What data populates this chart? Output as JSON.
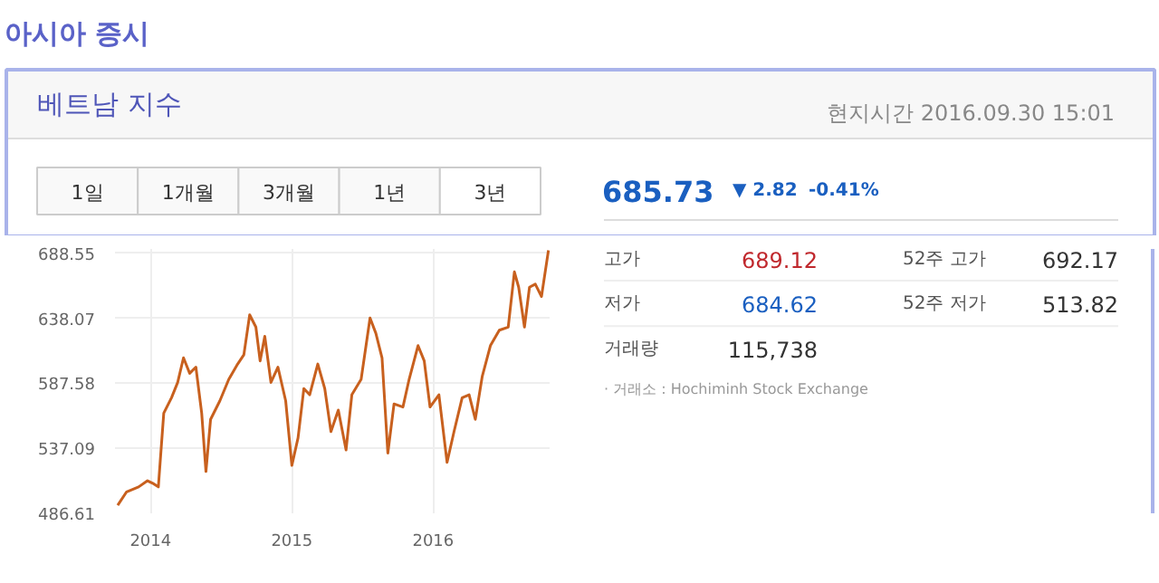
{
  "chart_data": [
    {
      "type": "other",
      "title": "아시아 증시",
      "subtitle": "베트남 지수",
      "annotations": [
        "현지시간 2016.09.30 15:01",
        "1일",
        "1개월",
        "3개월",
        "1년",
        "3년",
        "685.73",
        "▼ 2.82",
        "-0.41%",
        "고가",
        "689.12",
        "52주 고가",
        "692.17",
        "저가",
        "684.62",
        "52주 저가",
        "513.82",
        "거래량",
        "115,738",
        "· 거래소 : Hochiminh Stock Exchange"
      ]
    },
    {
      "type": "line",
      "color": "#c8601e",
      "grid": true,
      "xlim": [
        "2013-10-01",
        "2016-10-28"
      ],
      "ylim": [
        486.61,
        692
      ],
      "xticks": [
        {
          "value": "2014-01-01",
          "label": "2014"
        },
        {
          "value": "2015-01-01",
          "label": "2015"
        },
        {
          "value": "2016-01-01",
          "label": "2016"
        }
      ],
      "yticks": [
        486.61,
        537.09,
        587.58,
        638.07,
        688.55
      ],
      "x": [
        "2013-10-08",
        "2013-10-31",
        "2013-12-01",
        "2013-12-24",
        "2014-01-09",
        "2014-01-21",
        "2014-02-04",
        "2014-02-24",
        "2014-03-12",
        "2014-03-27",
        "2014-04-12",
        "2014-04-28",
        "2014-05-13",
        "2014-05-24",
        "2014-06-05",
        "2014-06-29",
        "2014-07-22",
        "2014-08-14",
        "2014-08-30",
        "2014-09-14",
        "2014-09-30",
        "2014-10-11",
        "2014-10-23",
        "2014-11-08",
        "2014-11-26",
        "2014-12-16",
        "2015-01-01",
        "2015-01-17",
        "2015-02-01",
        "2015-02-16",
        "2015-03-09",
        "2015-03-27",
        "2015-04-12",
        "2015-05-01",
        "2015-05-21",
        "2015-06-05",
        "2015-06-29",
        "2015-07-22",
        "2015-08-06",
        "2015-08-22",
        "2015-09-06",
        "2015-09-22",
        "2015-10-15",
        "2015-10-31",
        "2015-11-23",
        "2015-12-09",
        "2015-12-24",
        "2016-01-16",
        "2016-02-06",
        "2016-02-24",
        "2016-03-16",
        "2016-04-03",
        "2016-04-19",
        "2016-05-07",
        "2016-05-28",
        "2016-06-20",
        "2016-07-13",
        "2016-07-29",
        "2016-08-09",
        "2016-08-24",
        "2016-09-06",
        "2016-09-21",
        "2016-10-07",
        "2016-10-25"
      ],
      "values": [
        492.8,
        503.3,
        507.1,
        511.9,
        509.5,
        507.1,
        564.4,
        576.4,
        588.3,
        607.4,
        595.4,
        600.2,
        564.4,
        519.1,
        559.6,
        574.0,
        590.7,
        602.6,
        609.8,
        640.8,
        631.3,
        605.0,
        624.1,
        588.3,
        600.2,
        574.0,
        523.8,
        545.3,
        583.5,
        578.7,
        602.6,
        583.5,
        550.1,
        566.8,
        535.8,
        578.7,
        590.7,
        638.4,
        626.5,
        607.4,
        533.4,
        571.6,
        569.2,
        590.7,
        616.9,
        605.0,
        569.2,
        578.7,
        526.2,
        550.1,
        576.4,
        578.7,
        559.6,
        593.1,
        616.9,
        628.9,
        631.3,
        674.2,
        662.3,
        631.3,
        662.3,
        664.7,
        655.1,
        690.9
      ]
    }
  ]
}
